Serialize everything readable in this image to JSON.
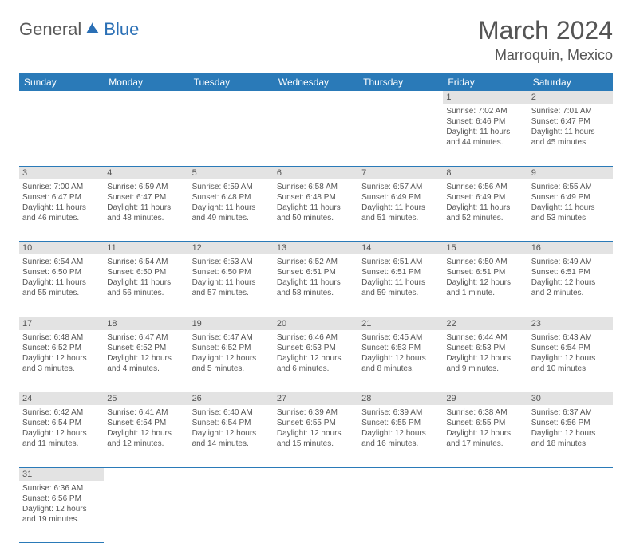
{
  "logo": {
    "part1": "General",
    "part2": "Blue"
  },
  "title": "March 2024",
  "location": "Marroquin, Mexico",
  "colors": {
    "header_bg": "#2a7ab8",
    "header_text": "#ffffff",
    "daynum_bg": "#e3e3e3",
    "text": "#555555",
    "rule": "#2a7ab8",
    "logo_gray": "#5a5a5a",
    "logo_blue": "#2a6fb5"
  },
  "dayheads": [
    "Sunday",
    "Monday",
    "Tuesday",
    "Wednesday",
    "Thursday",
    "Friday",
    "Saturday"
  ],
  "weeks": [
    [
      null,
      null,
      null,
      null,
      null,
      {
        "n": "1",
        "sr": "Sunrise: 7:02 AM",
        "ss": "Sunset: 6:46 PM",
        "dl": "Daylight: 11 hours and 44 minutes."
      },
      {
        "n": "2",
        "sr": "Sunrise: 7:01 AM",
        "ss": "Sunset: 6:47 PM",
        "dl": "Daylight: 11 hours and 45 minutes."
      }
    ],
    [
      {
        "n": "3",
        "sr": "Sunrise: 7:00 AM",
        "ss": "Sunset: 6:47 PM",
        "dl": "Daylight: 11 hours and 46 minutes."
      },
      {
        "n": "4",
        "sr": "Sunrise: 6:59 AM",
        "ss": "Sunset: 6:47 PM",
        "dl": "Daylight: 11 hours and 48 minutes."
      },
      {
        "n": "5",
        "sr": "Sunrise: 6:59 AM",
        "ss": "Sunset: 6:48 PM",
        "dl": "Daylight: 11 hours and 49 minutes."
      },
      {
        "n": "6",
        "sr": "Sunrise: 6:58 AM",
        "ss": "Sunset: 6:48 PM",
        "dl": "Daylight: 11 hours and 50 minutes."
      },
      {
        "n": "7",
        "sr": "Sunrise: 6:57 AM",
        "ss": "Sunset: 6:49 PM",
        "dl": "Daylight: 11 hours and 51 minutes."
      },
      {
        "n": "8",
        "sr": "Sunrise: 6:56 AM",
        "ss": "Sunset: 6:49 PM",
        "dl": "Daylight: 11 hours and 52 minutes."
      },
      {
        "n": "9",
        "sr": "Sunrise: 6:55 AM",
        "ss": "Sunset: 6:49 PM",
        "dl": "Daylight: 11 hours and 53 minutes."
      }
    ],
    [
      {
        "n": "10",
        "sr": "Sunrise: 6:54 AM",
        "ss": "Sunset: 6:50 PM",
        "dl": "Daylight: 11 hours and 55 minutes."
      },
      {
        "n": "11",
        "sr": "Sunrise: 6:54 AM",
        "ss": "Sunset: 6:50 PM",
        "dl": "Daylight: 11 hours and 56 minutes."
      },
      {
        "n": "12",
        "sr": "Sunrise: 6:53 AM",
        "ss": "Sunset: 6:50 PM",
        "dl": "Daylight: 11 hours and 57 minutes."
      },
      {
        "n": "13",
        "sr": "Sunrise: 6:52 AM",
        "ss": "Sunset: 6:51 PM",
        "dl": "Daylight: 11 hours and 58 minutes."
      },
      {
        "n": "14",
        "sr": "Sunrise: 6:51 AM",
        "ss": "Sunset: 6:51 PM",
        "dl": "Daylight: 11 hours and 59 minutes."
      },
      {
        "n": "15",
        "sr": "Sunrise: 6:50 AM",
        "ss": "Sunset: 6:51 PM",
        "dl": "Daylight: 12 hours and 1 minute."
      },
      {
        "n": "16",
        "sr": "Sunrise: 6:49 AM",
        "ss": "Sunset: 6:51 PM",
        "dl": "Daylight: 12 hours and 2 minutes."
      }
    ],
    [
      {
        "n": "17",
        "sr": "Sunrise: 6:48 AM",
        "ss": "Sunset: 6:52 PM",
        "dl": "Daylight: 12 hours and 3 minutes."
      },
      {
        "n": "18",
        "sr": "Sunrise: 6:47 AM",
        "ss": "Sunset: 6:52 PM",
        "dl": "Daylight: 12 hours and 4 minutes."
      },
      {
        "n": "19",
        "sr": "Sunrise: 6:47 AM",
        "ss": "Sunset: 6:52 PM",
        "dl": "Daylight: 12 hours and 5 minutes."
      },
      {
        "n": "20",
        "sr": "Sunrise: 6:46 AM",
        "ss": "Sunset: 6:53 PM",
        "dl": "Daylight: 12 hours and 6 minutes."
      },
      {
        "n": "21",
        "sr": "Sunrise: 6:45 AM",
        "ss": "Sunset: 6:53 PM",
        "dl": "Daylight: 12 hours and 8 minutes."
      },
      {
        "n": "22",
        "sr": "Sunrise: 6:44 AM",
        "ss": "Sunset: 6:53 PM",
        "dl": "Daylight: 12 hours and 9 minutes."
      },
      {
        "n": "23",
        "sr": "Sunrise: 6:43 AM",
        "ss": "Sunset: 6:54 PM",
        "dl": "Daylight: 12 hours and 10 minutes."
      }
    ],
    [
      {
        "n": "24",
        "sr": "Sunrise: 6:42 AM",
        "ss": "Sunset: 6:54 PM",
        "dl": "Daylight: 12 hours and 11 minutes."
      },
      {
        "n": "25",
        "sr": "Sunrise: 6:41 AM",
        "ss": "Sunset: 6:54 PM",
        "dl": "Daylight: 12 hours and 12 minutes."
      },
      {
        "n": "26",
        "sr": "Sunrise: 6:40 AM",
        "ss": "Sunset: 6:54 PM",
        "dl": "Daylight: 12 hours and 14 minutes."
      },
      {
        "n": "27",
        "sr": "Sunrise: 6:39 AM",
        "ss": "Sunset: 6:55 PM",
        "dl": "Daylight: 12 hours and 15 minutes."
      },
      {
        "n": "28",
        "sr": "Sunrise: 6:39 AM",
        "ss": "Sunset: 6:55 PM",
        "dl": "Daylight: 12 hours and 16 minutes."
      },
      {
        "n": "29",
        "sr": "Sunrise: 6:38 AM",
        "ss": "Sunset: 6:55 PM",
        "dl": "Daylight: 12 hours and 17 minutes."
      },
      {
        "n": "30",
        "sr": "Sunrise: 6:37 AM",
        "ss": "Sunset: 6:56 PM",
        "dl": "Daylight: 12 hours and 18 minutes."
      }
    ],
    [
      {
        "n": "31",
        "sr": "Sunrise: 6:36 AM",
        "ss": "Sunset: 6:56 PM",
        "dl": "Daylight: 12 hours and 19 minutes."
      },
      null,
      null,
      null,
      null,
      null,
      null
    ]
  ]
}
